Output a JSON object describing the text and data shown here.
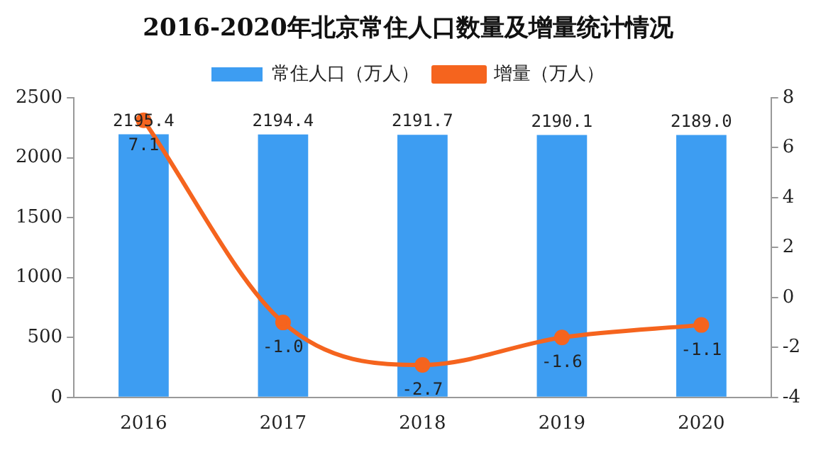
{
  "chart_data": {
    "type": "bar",
    "title": "2016-2020年北京常住人口数量及增量统计情况",
    "categories": [
      "2016",
      "2017",
      "2018",
      "2019",
      "2020"
    ],
    "series": [
      {
        "name": "常住人口（万人）",
        "color": "#3d9df2",
        "values": [
          2195.4,
          2194.4,
          2191.7,
          2190.1,
          2189.0
        ],
        "value_labels": [
          "2195.4",
          "2194.4",
          "2191.7",
          "2190.1",
          "2189.0"
        ]
      },
      {
        "name": "增量（万人）",
        "type": "line",
        "axis": "y2",
        "color": "#f5641e",
        "marker": "circle",
        "values": [
          7.1,
          -1.0,
          -2.7,
          -1.6,
          -1.1
        ],
        "value_labels": [
          "7.1",
          "-1.0",
          "-2.7",
          "-1.6",
          "-1.1"
        ]
      }
    ],
    "ylim": [
      0,
      2500
    ],
    "yticks": [
      0,
      500,
      1000,
      1500,
      2000,
      2500
    ],
    "y2lim": [
      -4,
      8
    ],
    "y2ticks": [
      -4,
      -2,
      0,
      2,
      4,
      6,
      8
    ],
    "grid": false,
    "legend": "top"
  }
}
